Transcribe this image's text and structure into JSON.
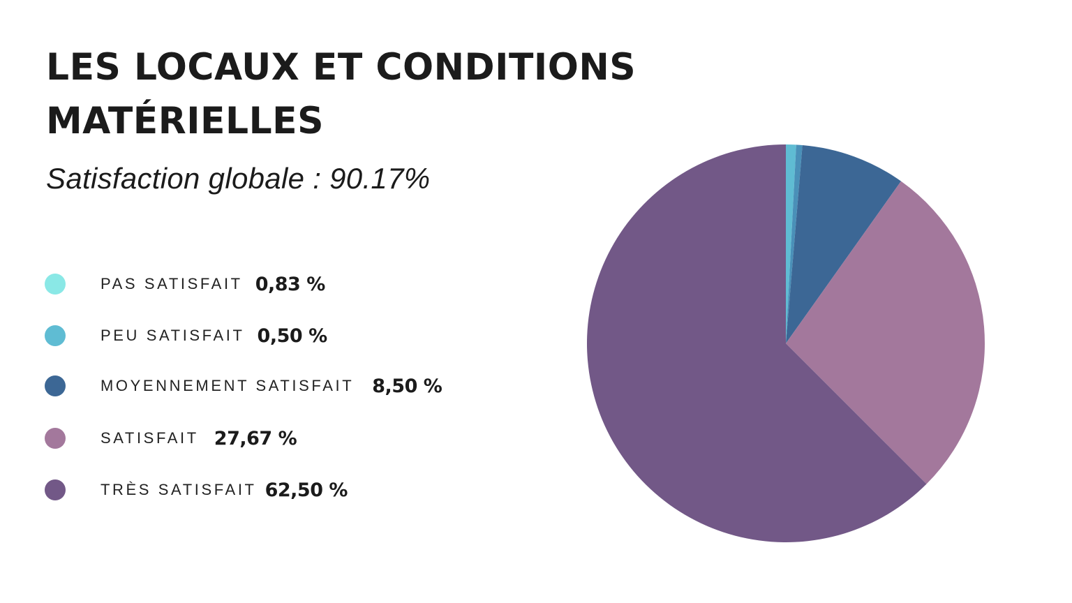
{
  "header": {
    "title": "LES LOCAUX ET CONDITIONS MATÉRIELLES",
    "subtitle": "Satisfaction globale : 90.17%"
  },
  "legend": {
    "items": [
      {
        "label": "PAS SATISFAIT",
        "value": "0,83 %",
        "color": "#8ae8e6"
      },
      {
        "label": "PEU SATISFAIT",
        "value": "0,50 %",
        "color": "#5fbcd3"
      },
      {
        "label": "MOYENNEMENT SATISFAIT",
        "value": "8,50 %",
        "color": "#3c6795"
      },
      {
        "label": "SATISFAIT",
        "value": "27,67 %",
        "color": "#a3789c"
      },
      {
        "label": "TRÈS SATISFAIT",
        "value": "62,50 %",
        "color": "#725887"
      }
    ]
  },
  "chart_data": {
    "type": "pie",
    "title": "LES LOCAUX ET CONDITIONS MATÉRIELLES",
    "subtitle": "Satisfaction globale : 90.17%",
    "categories": [
      "Pas satisfait",
      "Peu satisfait",
      "Moyennement satisfait",
      "Satisfait",
      "Très satisfait"
    ],
    "values": [
      0.83,
      0.5,
      8.5,
      27.67,
      62.5
    ],
    "colors": [
      "#5fbcd3",
      "#4a90b8",
      "#3c6795",
      "#a3789c",
      "#725887"
    ],
    "unit": "%",
    "start_angle": "12 o'clock",
    "direction": "clockwise",
    "legend_position": "left",
    "center": [
      1126,
      492
    ],
    "radius": 285
  }
}
